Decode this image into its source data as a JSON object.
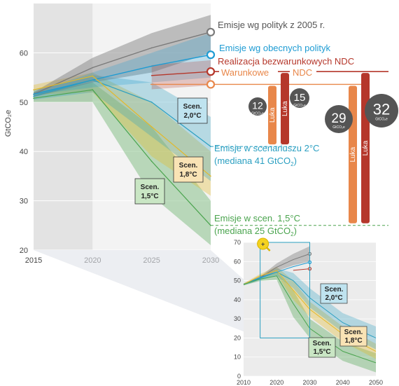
{
  "chart_data": [
    {
      "type": "line",
      "ylabel": "GtCO₂e",
      "x": [
        2015,
        2020,
        2025,
        2030
      ],
      "xlim": [
        2015,
        2030
      ],
      "ylim": [
        20,
        70
      ],
      "yticks": [
        20,
        30,
        40,
        50,
        60
      ],
      "shaded_region": "2015-2020",
      "series": [
        {
          "name": "Emisje wg polityk z 2005 r.",
          "color": "#7a7a7a",
          "x": [
            2015,
            2020,
            2025,
            2030
          ],
          "values": [
            51.6,
            57,
            61,
            64.2
          ],
          "band_low": [
            51,
            54,
            56,
            60
          ],
          "band_high": [
            52,
            59,
            64,
            67.7
          ]
        },
        {
          "name": "Emisje wg obecnych polityk",
          "color": "#1d9bd3",
          "x": [
            2015,
            2020,
            2025,
            2030
          ],
          "values": [
            51.6,
            54.5,
            57.3,
            59.6
          ],
          "band_low": [
            51.5,
            53,
            54,
            55
          ],
          "band_high": [
            52,
            56,
            60,
            64
          ]
        },
        {
          "name": "Realizacja bezwarunkowych NDC",
          "color": "#b5372b",
          "x": [
            2025,
            2030
          ],
          "values": [
            55.4,
            56.2
          ],
          "band_low": [
            52.6,
            53.4
          ],
          "band_high": [
            57.5,
            58.5
          ]
        },
        {
          "name": "Warunkowe NDC",
          "color": "#e8874a",
          "x": [
            2025,
            2030
          ],
          "values": [
            53.6,
            53.6
          ]
        },
        {
          "name": "Scen. 2,0°C",
          "color": "#2a9fc1",
          "x": [
            2015,
            2020,
            2025,
            2030
          ],
          "values": [
            51.2,
            54.5,
            50,
            41
          ],
          "band_low": [
            50.5,
            52,
            43,
            34
          ],
          "band_high": [
            52.5,
            55.5,
            54,
            47
          ]
        },
        {
          "name": "Scen. 1,8°C",
          "color": "#e3b92a",
          "x": [
            2015,
            2020,
            2025,
            2030
          ],
          "values": [
            52.5,
            55.3,
            45,
            35
          ],
          "band_low": [
            51.5,
            52,
            39,
            31
          ],
          "band_high": [
            53.5,
            56,
            50,
            40
          ]
        },
        {
          "name": "Scen. 1,5°C",
          "color": "#4aa44e",
          "x": [
            2015,
            2020,
            2025,
            2030
          ],
          "values": [
            50.8,
            52.5,
            38,
            25
          ],
          "band_low": [
            50,
            50,
            31,
            21
          ],
          "band_high": [
            52,
            54,
            45,
            30
          ]
        }
      ],
      "annotations": {
        "label_2": "Emisje w scenariuszu 2°C",
        "label_2_median": "(mediana 41 GtCO",
        "label_15": "Emisje w scen. 1,5°C",
        "label_15_median": "(mediana 25 GtCO",
        "sub2": "2",
        "close_paren": ")",
        "scen_prefix": "Scen.",
        "scen_20": "2,0°C",
        "scen_18": "1,8°C",
        "scen_15": "1,5°C",
        "ndc_warunkowe": "Warunkowe",
        "ndc_ndc": "NDC",
        "luka": "Luka",
        "gap_unit": "GtCO₂e",
        "gaps": [
          {
            "value": "12",
            "bar": "warunkowe",
            "target": "2,0°C"
          },
          {
            "value": "15",
            "bar": "bezwarunkowe",
            "target": "2,0°C"
          },
          {
            "value": "29",
            "bar": "warunkowe",
            "target": "1,5°C"
          },
          {
            "value": "32",
            "bar": "bezwarunkowe",
            "target": "1,5°C"
          }
        ]
      }
    },
    {
      "type": "line",
      "x": [
        2010,
        2020,
        2030,
        2040,
        2050
      ],
      "xlim": [
        2010,
        2050
      ],
      "ylim": [
        0,
        70
      ],
      "yticks": [
        0,
        10,
        20,
        30,
        40,
        50,
        60,
        70
      ],
      "zoom_window": [
        2015,
        2030
      ],
      "series": [
        {
          "name": "Emisje wg polityk z 2005 r.",
          "color": "#7a7a7a",
          "x": [
            2010,
            2015,
            2020,
            2025,
            2030
          ],
          "values": [
            48,
            51.6,
            57,
            61,
            64
          ]
        },
        {
          "name": "Emisje wg obecnych polityk",
          "color": "#1d9bd3",
          "x": [
            2010,
            2015,
            2020,
            2025,
            2030
          ],
          "values": [
            48,
            51.6,
            54.5,
            57.3,
            59.6
          ]
        },
        {
          "name": "Realizacja bezwarunkowych NDC",
          "color": "#b5372b",
          "x": [
            2025,
            2030
          ],
          "values": [
            55.4,
            56.2
          ]
        },
        {
          "name": "Scen. 2,0°C",
          "color": "#2a9fc1",
          "x": [
            2010,
            2015,
            2020,
            2025,
            2030,
            2040,
            2050
          ],
          "values": [
            48,
            51.2,
            54.5,
            50,
            41,
            28,
            20
          ]
        },
        {
          "name": "Scen. 1,8°C",
          "color": "#e3b92a",
          "x": [
            2010,
            2015,
            2020,
            2025,
            2030,
            2040,
            2050
          ],
          "values": [
            48,
            52.5,
            55.3,
            45,
            35,
            22,
            13
          ]
        },
        {
          "name": "Scen. 1,5°C",
          "color": "#4aa44e",
          "x": [
            2010,
            2015,
            2020,
            2025,
            2030,
            2040,
            2050
          ],
          "values": [
            48,
            50.8,
            52.5,
            38,
            25,
            13,
            7
          ]
        }
      ]
    }
  ]
}
